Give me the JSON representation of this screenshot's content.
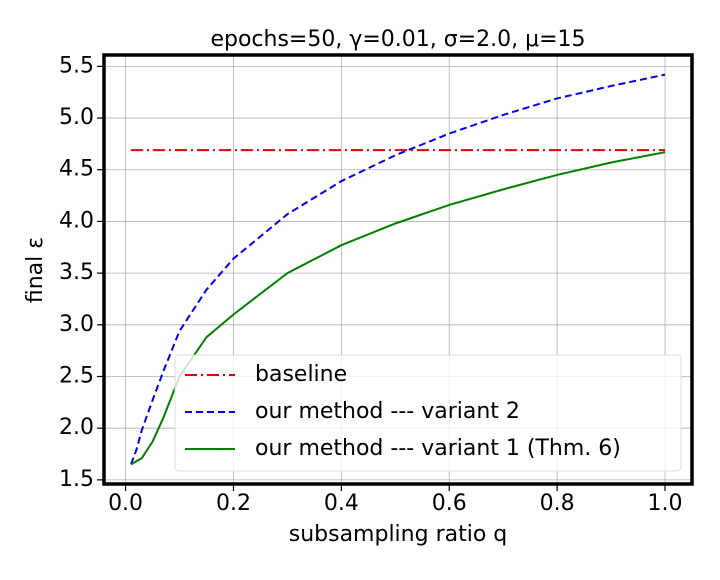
{
  "chart_data": {
    "type": "line",
    "title": "epochs=50, γ=0.01, σ=2.0, μ=15",
    "xlabel": "subsampling ratio q",
    "ylabel": "final ε",
    "x": [
      0.01,
      0.02,
      0.03,
      0.05,
      0.07,
      0.1,
      0.15,
      0.2,
      0.3,
      0.4,
      0.5,
      0.6,
      0.7,
      0.8,
      0.9,
      1.0
    ],
    "series": [
      {
        "name": "baseline",
        "color": "#e00000",
        "dash": "dashdot",
        "values": [
          4.69,
          4.69,
          4.69,
          4.69,
          4.69,
          4.69,
          4.69,
          4.69,
          4.69,
          4.69,
          4.69,
          4.69,
          4.69,
          4.69,
          4.69,
          4.69
        ]
      },
      {
        "name": "our method --- variant 2",
        "color": "#0000ee",
        "dash": "dashed",
        "values": [
          1.65,
          1.79,
          1.98,
          2.27,
          2.55,
          2.94,
          3.34,
          3.64,
          4.07,
          4.39,
          4.64,
          4.85,
          5.03,
          5.19,
          5.31,
          5.42
        ]
      },
      {
        "name": "our method --- variant 1 (Thm. 6)",
        "color": "#008000",
        "dash": "solid",
        "values": [
          1.65,
          1.68,
          1.71,
          1.87,
          2.1,
          2.5,
          2.88,
          3.1,
          3.5,
          3.77,
          3.98,
          4.16,
          4.31,
          4.45,
          4.57,
          4.67
        ]
      }
    ],
    "xlim": [
      -0.04,
      1.05
    ],
    "ylim": [
      1.46,
      5.61
    ],
    "xticks": [
      {
        "value": 0,
        "label": "0.0"
      },
      0.2,
      0.4,
      0.6,
      0.8,
      {
        "value": 1,
        "label": "1.0"
      }
    ],
    "yticks": [
      1.5,
      {
        "value": 2,
        "label": "2.0"
      },
      2.5,
      {
        "value": 3,
        "label": "3.0"
      },
      3.5,
      {
        "value": 4,
        "label": "4.0"
      },
      4.5,
      {
        "value": 5,
        "label": "5.0"
      },
      5.5
    ],
    "grid": true,
    "legend": "lower right"
  }
}
